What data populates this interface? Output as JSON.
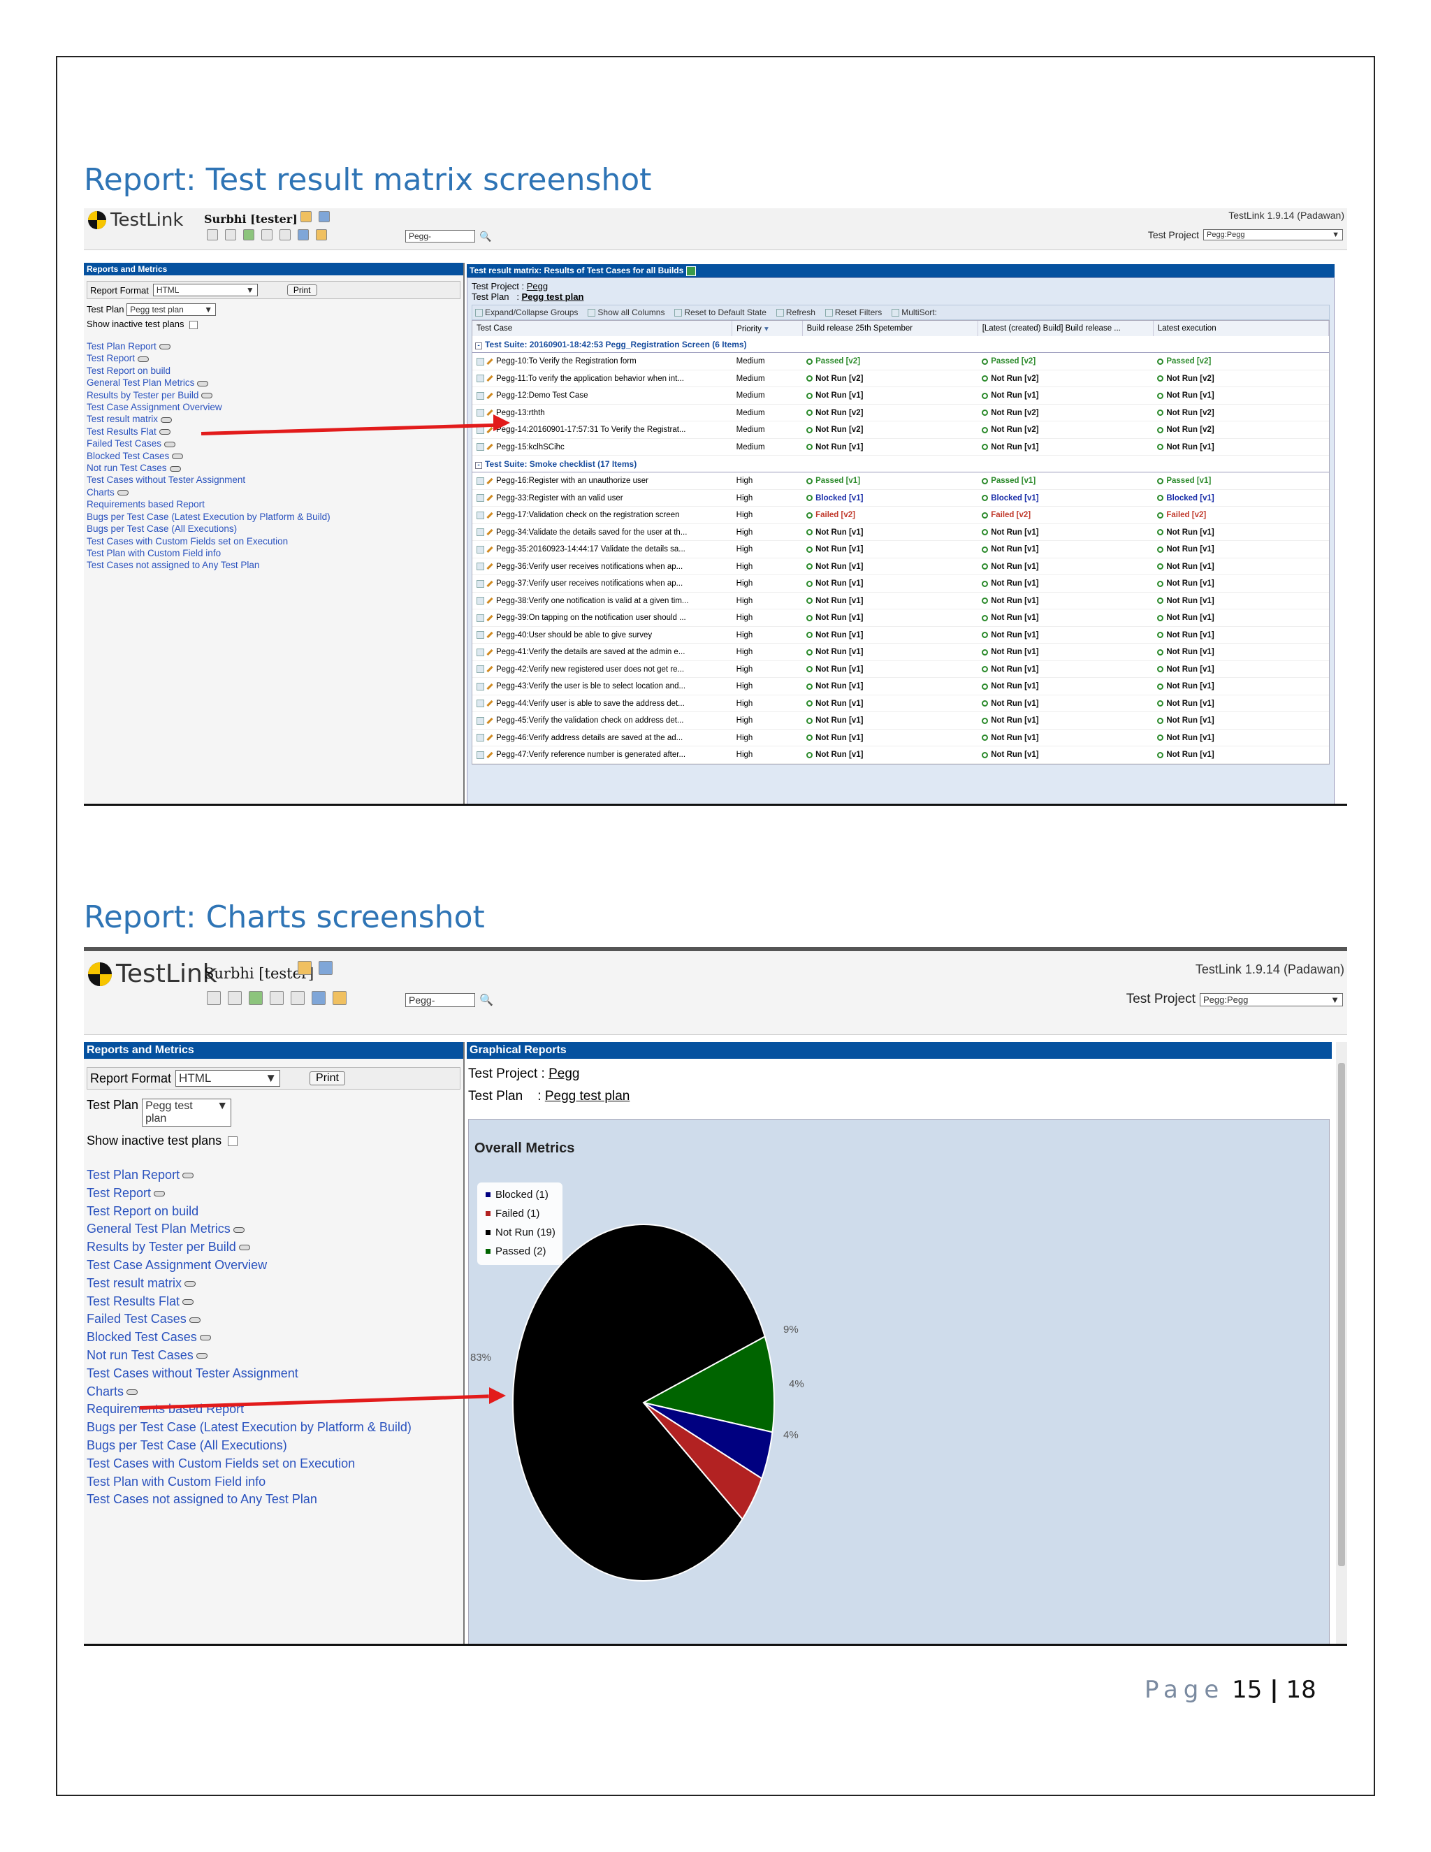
{
  "section1": {
    "heading": "Report: Test result matrix screenshot",
    "app": {
      "logo": "TestLink",
      "user": "Surbhi [tester]",
      "search_value": "Pegg-",
      "version": "TestLink 1.9.14 (Padawan)",
      "project_label": "Test Project",
      "project_value": "Pegg:Pegg"
    },
    "sidebar": {
      "title": "Reports and Metrics",
      "report_format_label": "Report Format",
      "report_format_value": "HTML",
      "print_label": "Print",
      "test_plan_label": "Test Plan",
      "test_plan_value": "Pegg test plan",
      "inactive_label": "Show inactive test plans",
      "links": [
        {
          "label": "Test Plan Report",
          "eye": true
        },
        {
          "label": "Test Report",
          "eye": true
        },
        {
          "label": "Test Report on build",
          "eye": false
        },
        {
          "label": "General Test Plan Metrics",
          "eye": true
        },
        {
          "label": "Results by Tester per Build",
          "eye": true
        },
        {
          "label": "Test Case Assignment Overview",
          "eye": false
        },
        {
          "label": "Test result matrix",
          "eye": true
        },
        {
          "label": "Test Results Flat",
          "eye": true
        },
        {
          "label": "Failed Test Cases",
          "eye": true
        },
        {
          "label": "Blocked Test Cases",
          "eye": true
        },
        {
          "label": "Not run Test Cases",
          "eye": true
        },
        {
          "label": "Test Cases without Tester Assignment",
          "eye": false
        },
        {
          "label": "Charts",
          "eye": true
        },
        {
          "label": "Requirements based Report",
          "eye": false
        },
        {
          "label": "Bugs per Test Case (Latest Execution by Platform & Build)",
          "eye": false
        },
        {
          "label": "Bugs per Test Case (All Executions)",
          "eye": false
        },
        {
          "label": "Test Cases with Custom Fields set on Execution",
          "eye": false
        },
        {
          "label": "Test Plan with Custom Field info",
          "eye": false
        },
        {
          "label": "Test Cases not assigned to Any Test Plan",
          "eye": false
        }
      ]
    },
    "main": {
      "title": "Test result matrix: Results of Test Cases for all Builds",
      "test_project_label": "Test Project :",
      "test_project_value": "Pegg",
      "test_plan_label": "Test Plan",
      "test_plan_value": "Pegg test plan",
      "toolbar": [
        "Expand/Collapse Groups",
        "Show all Columns",
        "Reset to Default State",
        "Refresh",
        "Reset Filters",
        "MultiSort:"
      ],
      "columns": [
        "Test Case",
        "Priority",
        "Build release 25th Spetember",
        "[Latest (created) Build] Build release ...",
        "Latest execution"
      ],
      "groups": [
        {
          "title": "Test Suite: 20160901-18:42:53 Pegg_Registration Screen (6 Items)",
          "rows": [
            [
              "Pegg-10:To Verify the Registration form",
              "Medium",
              "Passed [v2]",
              "Passed [v2]",
              "Passed [v2]"
            ],
            [
              "Pegg-11:To verify the application behavior when int...",
              "Medium",
              "Not Run [v2]",
              "Not Run [v2]",
              "Not Run [v2]"
            ],
            [
              "Pegg-12:Demo Test Case",
              "Medium",
              "Not Run [v1]",
              "Not Run [v1]",
              "Not Run [v1]"
            ],
            [
              "Pegg-13:rthth",
              "Medium",
              "Not Run [v2]",
              "Not Run [v2]",
              "Not Run [v2]"
            ],
            [
              "Pegg-14:20160901-17:57:31 To Verify the Registrat...",
              "Medium",
              "Not Run [v2]",
              "Not Run [v2]",
              "Not Run [v2]"
            ],
            [
              "Pegg-15:kclhSCihc",
              "Medium",
              "Not Run [v1]",
              "Not Run [v1]",
              "Not Run [v1]"
            ]
          ]
        },
        {
          "title": "Test Suite: Smoke checklist (17 Items)",
          "rows": [
            [
              "Pegg-16:Register with an unauthorize user",
              "High",
              "Passed [v1]",
              "Passed [v1]",
              "Passed [v1]"
            ],
            [
              "Pegg-33:Register with an valid user",
              "High",
              "Blocked [v1]",
              "Blocked [v1]",
              "Blocked [v1]"
            ],
            [
              "Pegg-17:Validation check on the registration screen",
              "High",
              "Failed [v2]",
              "Failed [v2]",
              "Failed [v2]"
            ],
            [
              "Pegg-34:Validate the details saved for the user at th...",
              "High",
              "Not Run [v1]",
              "Not Run [v1]",
              "Not Run [v1]"
            ],
            [
              "Pegg-35:20160923-14:44:17 Validate the details sa...",
              "High",
              "Not Run [v1]",
              "Not Run [v1]",
              "Not Run [v1]"
            ],
            [
              "Pegg-36:Verify user receives notifications when ap...",
              "High",
              "Not Run [v1]",
              "Not Run [v1]",
              "Not Run [v1]"
            ],
            [
              "Pegg-37:Verify user receives notifications when ap...",
              "High",
              "Not Run [v1]",
              "Not Run [v1]",
              "Not Run [v1]"
            ],
            [
              "Pegg-38:Verify one notification is valid at a given tim...",
              "High",
              "Not Run [v1]",
              "Not Run [v1]",
              "Not Run [v1]"
            ],
            [
              "Pegg-39:On tapping on the notification user should ...",
              "High",
              "Not Run [v1]",
              "Not Run [v1]",
              "Not Run [v1]"
            ],
            [
              "Pegg-40:User should be able to give survey",
              "High",
              "Not Run [v1]",
              "Not Run [v1]",
              "Not Run [v1]"
            ],
            [
              "Pegg-41:Verify the details are saved at the admin e...",
              "High",
              "Not Run [v1]",
              "Not Run [v1]",
              "Not Run [v1]"
            ],
            [
              "Pegg-42:Verify new registered user does not get re...",
              "High",
              "Not Run [v1]",
              "Not Run [v1]",
              "Not Run [v1]"
            ],
            [
              "Pegg-43:Verify the user is ble to select location and...",
              "High",
              "Not Run [v1]",
              "Not Run [v1]",
              "Not Run [v1]"
            ],
            [
              "Pegg-44:Verify user is able to save the address det...",
              "High",
              "Not Run [v1]",
              "Not Run [v1]",
              "Not Run [v1]"
            ],
            [
              "Pegg-45:Verify the validation check on address det...",
              "High",
              "Not Run [v1]",
              "Not Run [v1]",
              "Not Run [v1]"
            ],
            [
              "Pegg-46:Verify address details are saved at the ad...",
              "High",
              "Not Run [v1]",
              "Not Run [v1]",
              "Not Run [v1]"
            ],
            [
              "Pegg-47:Verify reference number is generated after...",
              "High",
              "Not Run [v1]",
              "Not Run [v1]",
              "Not Run [v1]"
            ]
          ]
        }
      ]
    }
  },
  "section2": {
    "heading": "Report: Charts screenshot",
    "main": {
      "title": "Graphical Reports",
      "test_project_label": "Test Project :",
      "test_project_value": "Pegg",
      "test_plan_label": "Test Plan",
      "test_plan_sep": ":",
      "test_plan_value": "Pegg test plan"
    }
  },
  "chart_data": {
    "type": "pie",
    "title": "Overall Metrics",
    "slices": [
      {
        "label": "Blocked (1)",
        "value": 1,
        "pct_label": "4%",
        "color": "#000080"
      },
      {
        "label": "Failed (1)",
        "value": 1,
        "pct_label": "4%",
        "color": "#b22222"
      },
      {
        "label": "Not Run (19)",
        "value": 19,
        "pct_label": "83%",
        "color": "#000000"
      },
      {
        "label": "Passed (2)",
        "value": 2,
        "pct_label": "9%",
        "color": "#006400"
      }
    ],
    "legend_position": "top-left"
  },
  "footer": {
    "page_label": "Page",
    "page_number": "15",
    "separator": "|",
    "page_total": "18"
  }
}
